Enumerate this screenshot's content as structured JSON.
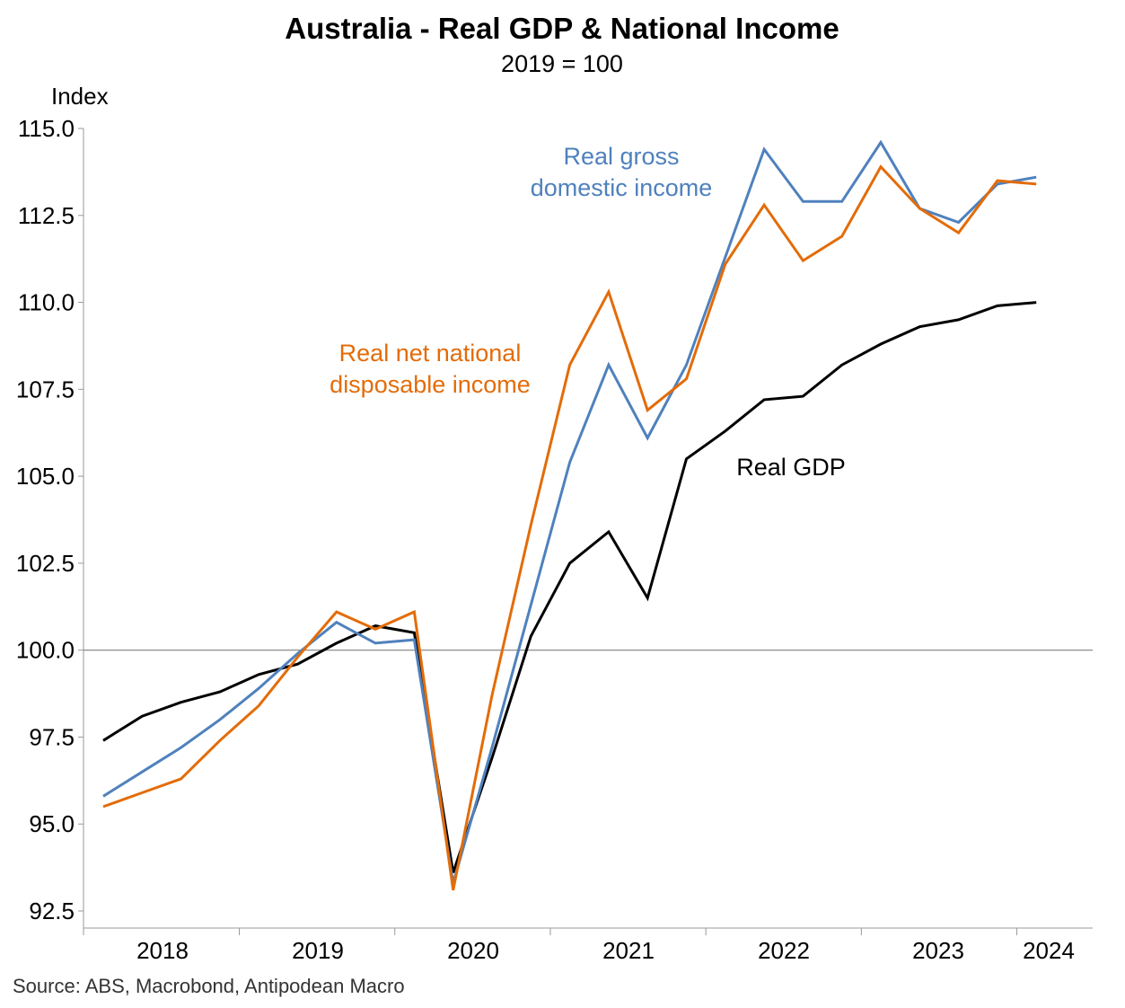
{
  "chart_data": {
    "type": "line",
    "title": "Australia - Real GDP & National Income",
    "subtitle": "2019 = 100",
    "ylabel": "Index",
    "xlabel": "",
    "ylim": [
      92.5,
      115.0
    ],
    "y_ticks": [
      "92.5",
      "95.0",
      "97.5",
      "100.0",
      "102.5",
      "105.0",
      "107.5",
      "110.0",
      "112.5",
      "115.0"
    ],
    "y_tick_values": [
      92.5,
      95.0,
      97.5,
      100.0,
      102.5,
      105.0,
      107.5,
      110.0,
      112.5,
      115.0
    ],
    "x_year_labels": [
      "2018",
      "2019",
      "2020",
      "2021",
      "2022",
      "2023",
      "2024"
    ],
    "x": [
      "2018-Q1",
      "2018-Q2",
      "2018-Q3",
      "2018-Q4",
      "2019-Q1",
      "2019-Q2",
      "2019-Q3",
      "2019-Q4",
      "2020-Q1",
      "2020-Q2",
      "2020-Q3",
      "2020-Q4",
      "2021-Q1",
      "2021-Q2",
      "2021-Q3",
      "2021-Q4",
      "2022-Q1",
      "2022-Q2",
      "2022-Q3",
      "2022-Q4",
      "2023-Q1",
      "2023-Q2",
      "2023-Q3",
      "2023-Q4",
      "2024-Q1"
    ],
    "reference_line": 100.0,
    "grid": false,
    "series": [
      {
        "name": "Real GDP",
        "color": "#000000",
        "values": [
          97.4,
          98.1,
          98.5,
          98.8,
          99.3,
          99.6,
          100.2,
          100.7,
          100.5,
          93.6,
          96.9,
          100.4,
          102.5,
          103.4,
          101.5,
          105.5,
          106.3,
          107.2,
          107.3,
          108.2,
          108.8,
          109.3,
          109.5,
          109.9,
          110.0
        ]
      },
      {
        "name": "Real gross domestic income",
        "color": "#4f81bd",
        "values": [
          95.8,
          96.5,
          97.2,
          98.0,
          98.9,
          99.9,
          100.8,
          100.2,
          100.3,
          93.3,
          97.2,
          101.3,
          105.4,
          108.2,
          106.1,
          108.2,
          111.3,
          114.4,
          112.9,
          112.9,
          114.6,
          112.7,
          112.3,
          113.4,
          113.6
        ]
      },
      {
        "name": "Real net national disposable income",
        "color": "#e36c09",
        "values": [
          95.5,
          95.9,
          96.3,
          97.4,
          98.4,
          99.8,
          101.1,
          100.6,
          101.1,
          93.1,
          98.7,
          103.6,
          108.2,
          110.3,
          106.9,
          107.8,
          111.1,
          112.8,
          111.2,
          111.9,
          113.9,
          112.7,
          112.0,
          113.5,
          113.4
        ]
      }
    ],
    "series_labels": [
      {
        "lines": [
          "Real gross",
          "domestic income"
        ],
        "color": "#4f81bd"
      },
      {
        "lines": [
          "Real net national",
          "disposable income"
        ],
        "color": "#e36c09"
      },
      {
        "lines": [
          "Real GDP"
        ],
        "color": "#000000"
      }
    ],
    "source": "Source: ABS, Macrobond, Antipodean Macro"
  }
}
